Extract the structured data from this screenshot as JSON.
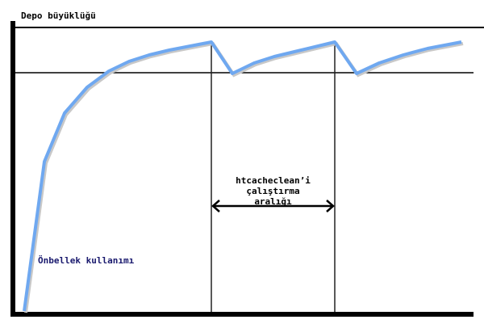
{
  "labels": {
    "y_axis": "Depo büyüklüğü",
    "interval_line1": "htcacheclean’i",
    "interval_line2": "çalıştırma",
    "interval_line3": "aralığı",
    "curve": "Önbellek kullanımı"
  },
  "colors": {
    "curve": "#6fa8f0",
    "axes": "#000000",
    "curve_label": "#1a1a6e"
  }
}
